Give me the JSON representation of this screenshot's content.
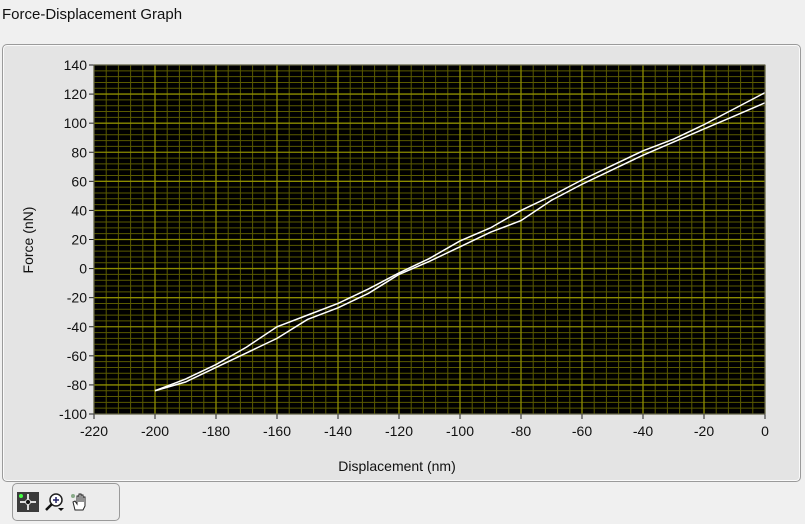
{
  "title": "Force-Displacement Graph",
  "chart_data": {
    "type": "line",
    "title": "",
    "xlabel": "Displacement (nm)",
    "ylabel": "Force (nN)",
    "xlim": [
      -220,
      0
    ],
    "ylim": [
      -100,
      140
    ],
    "xticks": [
      -220,
      -200,
      -180,
      -160,
      -140,
      -120,
      -100,
      -80,
      -60,
      -40,
      -20,
      0
    ],
    "yticks": [
      -100,
      -80,
      -60,
      -40,
      -20,
      0,
      20,
      40,
      60,
      80,
      100,
      120,
      140
    ],
    "grid": true,
    "minor_grid": true,
    "background": "#000000",
    "grid_color": "#8c8c00",
    "line_color": "#ffffff",
    "x": [
      -200,
      -190,
      -180,
      -170,
      -160,
      -150,
      -140,
      -130,
      -120,
      -110,
      -100,
      -90,
      -80,
      -70,
      -60,
      -50,
      -40,
      -30,
      -20,
      -10,
      0
    ],
    "series": [
      {
        "values": [
          -84,
          -76,
          -66,
          -54,
          -40,
          -32,
          -24,
          -14,
          -3,
          7,
          19,
          28,
          40,
          50,
          61,
          71,
          81,
          89,
          99,
          110,
          121
        ]
      },
      {
        "values": [
          -84,
          -78,
          -68,
          -58,
          -48,
          -35,
          -27,
          -17,
          -4,
          5,
          15,
          25,
          33,
          47,
          58,
          68,
          78,
          87,
          96,
          105,
          114
        ]
      }
    ]
  },
  "toolbar": {
    "tools": [
      {
        "icon": "cursor-crosshair-icon",
        "active": true
      },
      {
        "icon": "zoom-icon",
        "active": false
      },
      {
        "icon": "pan-hand-icon",
        "active": false
      }
    ]
  }
}
